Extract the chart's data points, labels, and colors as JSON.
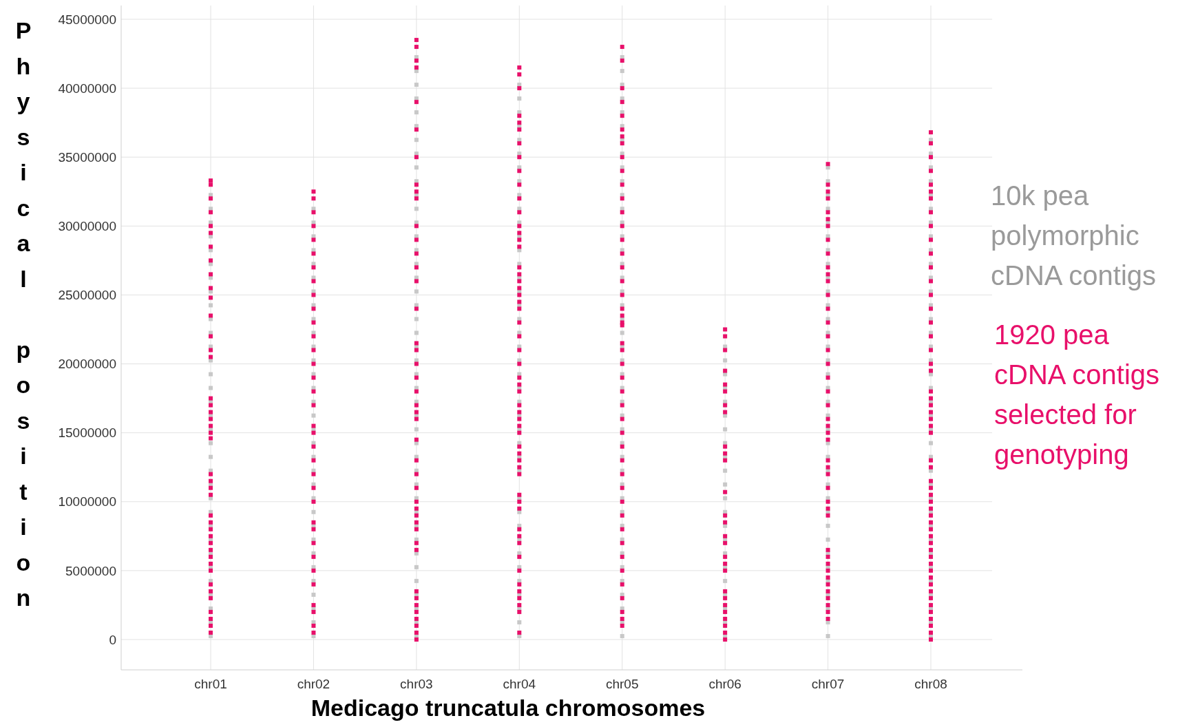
{
  "chart_data": {
    "type": "scatter",
    "xlabel": "Medicago truncatula chromosomes",
    "ylabel": "Physical position",
    "categories": [
      "chr01",
      "chr02",
      "chr03",
      "chr04",
      "chr05",
      "chr06",
      "chr07",
      "chr08"
    ],
    "ylim": [
      -2200000,
      46000000
    ],
    "yticks": [
      0,
      5000000,
      10000000,
      15000000,
      20000000,
      25000000,
      30000000,
      35000000,
      40000000,
      45000000
    ],
    "grid": true,
    "legend": "right",
    "marker": "square",
    "series": [
      {
        "name": "10k pea polymorphic cDNA contigs",
        "color": "#c8c8c8",
        "x": [
          "chr01",
          "chr01",
          "chr01",
          "chr01",
          "chr01",
          "chr01",
          "chr01",
          "chr01",
          "chr01",
          "chr01",
          "chr01",
          "chr01",
          "chr01",
          "chr01",
          "chr01",
          "chr01",
          "chr01",
          "chr01",
          "chr01",
          "chr01",
          "chr01",
          "chr01",
          "chr01",
          "chr01",
          "chr01",
          "chr01",
          "chr01",
          "chr01",
          "chr01",
          "chr01",
          "chr01",
          "chr01",
          "chr01",
          "chr02",
          "chr02",
          "chr02",
          "chr02",
          "chr02",
          "chr02",
          "chr02",
          "chr02",
          "chr02",
          "chr02",
          "chr02",
          "chr02",
          "chr02",
          "chr02",
          "chr02",
          "chr02",
          "chr02",
          "chr02",
          "chr02",
          "chr02",
          "chr02",
          "chr02",
          "chr02",
          "chr02",
          "chr02",
          "chr02",
          "chr02",
          "chr02",
          "chr02",
          "chr02",
          "chr02",
          "chr02",
          "chr03",
          "chr03",
          "chr03",
          "chr03",
          "chr03",
          "chr03",
          "chr03",
          "chr03",
          "chr03",
          "chr03",
          "chr03",
          "chr03",
          "chr03",
          "chr03",
          "chr03",
          "chr03",
          "chr03",
          "chr03",
          "chr03",
          "chr03",
          "chr03",
          "chr03",
          "chr03",
          "chr03",
          "chr03",
          "chr03",
          "chr03",
          "chr03",
          "chr03",
          "chr03",
          "chr03",
          "chr03",
          "chr03",
          "chr03",
          "chr03",
          "chr03",
          "chr03",
          "chr03",
          "chr03",
          "chr03",
          "chr03",
          "chr03",
          "chr03",
          "chr04",
          "chr04",
          "chr04",
          "chr04",
          "chr04",
          "chr04",
          "chr04",
          "chr04",
          "chr04",
          "chr04",
          "chr04",
          "chr04",
          "chr04",
          "chr04",
          "chr04",
          "chr04",
          "chr04",
          "chr04",
          "chr04",
          "chr04",
          "chr04",
          "chr04",
          "chr04",
          "chr04",
          "chr04",
          "chr04",
          "chr04",
          "chr04",
          "chr04",
          "chr04",
          "chr04",
          "chr04",
          "chr04",
          "chr04",
          "chr04",
          "chr04",
          "chr04",
          "chr04",
          "chr04",
          "chr04",
          "chr05",
          "chr05",
          "chr05",
          "chr05",
          "chr05",
          "chr05",
          "chr05",
          "chr05",
          "chr05",
          "chr05",
          "chr05",
          "chr05",
          "chr05",
          "chr05",
          "chr05",
          "chr05",
          "chr05",
          "chr05",
          "chr05",
          "chr05",
          "chr05",
          "chr05",
          "chr05",
          "chr05",
          "chr05",
          "chr05",
          "chr05",
          "chr05",
          "chr05",
          "chr05",
          "chr05",
          "chr05",
          "chr05",
          "chr05",
          "chr05",
          "chr05",
          "chr05",
          "chr05",
          "chr05",
          "chr05",
          "chr05",
          "chr05",
          "chr05",
          "chr06",
          "chr06",
          "chr06",
          "chr06",
          "chr06",
          "chr06",
          "chr06",
          "chr06",
          "chr06",
          "chr06",
          "chr06",
          "chr06",
          "chr06",
          "chr06",
          "chr06",
          "chr06",
          "chr06",
          "chr06",
          "chr06",
          "chr06",
          "chr06",
          "chr06",
          "chr07",
          "chr07",
          "chr07",
          "chr07",
          "chr07",
          "chr07",
          "chr07",
          "chr07",
          "chr07",
          "chr07",
          "chr07",
          "chr07",
          "chr07",
          "chr07",
          "chr07",
          "chr07",
          "chr07",
          "chr07",
          "chr07",
          "chr07",
          "chr07",
          "chr07",
          "chr07",
          "chr07",
          "chr07",
          "chr07",
          "chr07",
          "chr07",
          "chr07",
          "chr07",
          "chr07",
          "chr07",
          "chr07",
          "chr07",
          "chr07",
          "chr08",
          "chr08",
          "chr08",
          "chr08",
          "chr08",
          "chr08",
          "chr08",
          "chr08",
          "chr08",
          "chr08",
          "chr08",
          "chr08",
          "chr08",
          "chr08",
          "chr08",
          "chr08",
          "chr08",
          "chr08",
          "chr08",
          "chr08",
          "chr08",
          "chr08",
          "chr08",
          "chr08",
          "chr08",
          "chr08",
          "chr08",
          "chr08",
          "chr08",
          "chr08",
          "chr08",
          "chr08",
          "chr08",
          "chr08",
          "chr08",
          "chr08",
          "chr08"
        ],
        "values": [
          250000,
          1250000,
          2250000,
          3250000,
          4250000,
          5250000,
          6250000,
          7250000,
          8250000,
          9250000,
          10250000,
          11250000,
          12250000,
          13250000,
          14250000,
          15250000,
          16250000,
          17250000,
          18250000,
          19250000,
          20250000,
          21250000,
          22250000,
          23250000,
          24250000,
          25250000,
          26250000,
          27250000,
          28250000,
          29250000,
          30250000,
          31250000,
          32250000,
          250000,
          1250000,
          2250000,
          3250000,
          4250000,
          5250000,
          6250000,
          7250000,
          8250000,
          9250000,
          10250000,
          11250000,
          12250000,
          13250000,
          14250000,
          15250000,
          16250000,
          17250000,
          18250000,
          19250000,
          20250000,
          21250000,
          22250000,
          23250000,
          24250000,
          25250000,
          26250000,
          27250000,
          28250000,
          29250000,
          30250000,
          31250000,
          250000,
          1250000,
          2250000,
          3250000,
          4250000,
          5250000,
          6250000,
          7250000,
          8250000,
          9250000,
          10250000,
          11250000,
          12250000,
          13250000,
          14250000,
          15250000,
          16250000,
          17250000,
          18250000,
          19250000,
          20250000,
          21250000,
          22250000,
          23250000,
          24250000,
          25250000,
          26250000,
          27250000,
          28250000,
          29250000,
          30250000,
          31250000,
          32250000,
          33250000,
          34250000,
          35250000,
          36250000,
          37250000,
          38250000,
          39250000,
          40250000,
          41250000,
          42250000,
          250000,
          1250000,
          2250000,
          3250000,
          4250000,
          5250000,
          6250000,
          7250000,
          8250000,
          9250000,
          10250000,
          12250000,
          13250000,
          14250000,
          15250000,
          16250000,
          17250000,
          18250000,
          19250000,
          20250000,
          21250000,
          22250000,
          23250000,
          24250000,
          25250000,
          26250000,
          27250000,
          28250000,
          29250000,
          30250000,
          31250000,
          32250000,
          33250000,
          34250000,
          35250000,
          36250000,
          37250000,
          38250000,
          39250000,
          40250000,
          250000,
          1250000,
          2250000,
          3250000,
          4250000,
          5250000,
          6250000,
          7250000,
          8250000,
          9250000,
          10250000,
          11250000,
          12250000,
          13250000,
          14250000,
          15250000,
          16250000,
          17250000,
          18250000,
          19250000,
          20250000,
          21250000,
          22250000,
          23250000,
          24250000,
          25250000,
          26250000,
          27250000,
          28250000,
          29250000,
          30250000,
          31250000,
          32250000,
          33250000,
          34250000,
          35250000,
          36250000,
          37250000,
          38250000,
          39250000,
          40250000,
          41250000,
          42250000,
          250000,
          1250000,
          2250000,
          3250000,
          4250000,
          5250000,
          6250000,
          7250000,
          8250000,
          9250000,
          10250000,
          11250000,
          12250000,
          13250000,
          14250000,
          15250000,
          16250000,
          17250000,
          18250000,
          19250000,
          20250000,
          21250000,
          250000,
          1250000,
          2250000,
          3250000,
          4250000,
          5250000,
          6250000,
          7250000,
          8250000,
          9250000,
          10250000,
          11250000,
          12250000,
          13250000,
          14250000,
          15250000,
          16250000,
          17250000,
          18250000,
          19250000,
          20250000,
          21250000,
          22250000,
          23250000,
          24250000,
          25250000,
          26250000,
          27250000,
          28250000,
          29250000,
          30250000,
          31250000,
          32250000,
          33250000,
          34250000,
          250000,
          1250000,
          2250000,
          3250000,
          4250000,
          5250000,
          6250000,
          7250000,
          8250000,
          9250000,
          10250000,
          11250000,
          12250000,
          13250000,
          14250000,
          15250000,
          16250000,
          17250000,
          18250000,
          19250000,
          20250000,
          21250000,
          22250000,
          23250000,
          24250000,
          25250000,
          26250000,
          27250000,
          28250000,
          29250000,
          30250000,
          31250000,
          32250000,
          33250000,
          34250000,
          35250000,
          36250000
        ]
      },
      {
        "name": "1920 pea cDNA contigs selected for genotyping",
        "color": "#e8106a",
        "x": [
          "chr01",
          "chr01",
          "chr01",
          "chr01",
          "chr01",
          "chr01",
          "chr01",
          "chr01",
          "chr01",
          "chr01",
          "chr01",
          "chr01",
          "chr01",
          "chr01",
          "chr01",
          "chr01",
          "chr01",
          "chr01",
          "chr01",
          "chr01",
          "chr01",
          "chr01",
          "chr01",
          "chr01",
          "chr01",
          "chr01",
          "chr01",
          "chr01",
          "chr01",
          "chr01",
          "chr01",
          "chr01",
          "chr01",
          "chr01",
          "chr01",
          "chr01",
          "chr01",
          "chr01",
          "chr01",
          "chr01",
          "chr01",
          "chr01",
          "chr02",
          "chr02",
          "chr02",
          "chr02",
          "chr02",
          "chr02",
          "chr02",
          "chr02",
          "chr02",
          "chr02",
          "chr02",
          "chr02",
          "chr02",
          "chr02",
          "chr02",
          "chr02",
          "chr02",
          "chr02",
          "chr02",
          "chr02",
          "chr02",
          "chr02",
          "chr02",
          "chr02",
          "chr02",
          "chr02",
          "chr02",
          "chr02",
          "chr02",
          "chr02",
          "chr02",
          "chr02",
          "chr02",
          "chr02",
          "chr03",
          "chr03",
          "chr03",
          "chr03",
          "chr03",
          "chr03",
          "chr03",
          "chr03",
          "chr03",
          "chr03",
          "chr03",
          "chr03",
          "chr03",
          "chr03",
          "chr03",
          "chr03",
          "chr03",
          "chr03",
          "chr03",
          "chr03",
          "chr03",
          "chr03",
          "chr03",
          "chr03",
          "chr03",
          "chr03",
          "chr03",
          "chr03",
          "chr03",
          "chr03",
          "chr03",
          "chr03",
          "chr03",
          "chr03",
          "chr03",
          "chr03",
          "chr03",
          "chr03",
          "chr03",
          "chr03",
          "chr03",
          "chr03",
          "chr03",
          "chr04",
          "chr04",
          "chr04",
          "chr04",
          "chr04",
          "chr04",
          "chr04",
          "chr04",
          "chr04",
          "chr04",
          "chr04",
          "chr04",
          "chr04",
          "chr04",
          "chr04",
          "chr04",
          "chr04",
          "chr04",
          "chr04",
          "chr04",
          "chr04",
          "chr04",
          "chr04",
          "chr04",
          "chr04",
          "chr04",
          "chr04",
          "chr04",
          "chr04",
          "chr04",
          "chr04",
          "chr04",
          "chr04",
          "chr04",
          "chr04",
          "chr04",
          "chr04",
          "chr04",
          "chr04",
          "chr04",
          "chr04",
          "chr04",
          "chr04",
          "chr04",
          "chr04",
          "chr04",
          "chr04",
          "chr04",
          "chr04",
          "chr04",
          "chr04",
          "chr04",
          "chr04",
          "chr04",
          "chr05",
          "chr05",
          "chr05",
          "chr05",
          "chr05",
          "chr05",
          "chr05",
          "chr05",
          "chr05",
          "chr05",
          "chr05",
          "chr05",
          "chr05",
          "chr05",
          "chr05",
          "chr05",
          "chr05",
          "chr05",
          "chr05",
          "chr05",
          "chr05",
          "chr05",
          "chr05",
          "chr05",
          "chr05",
          "chr05",
          "chr05",
          "chr05",
          "chr05",
          "chr05",
          "chr05",
          "chr05",
          "chr05",
          "chr05",
          "chr05",
          "chr05",
          "chr05",
          "chr05",
          "chr05",
          "chr05",
          "chr05",
          "chr05",
          "chr05",
          "chr05",
          "chr05",
          "chr05",
          "chr06",
          "chr06",
          "chr06",
          "chr06",
          "chr06",
          "chr06",
          "chr06",
          "chr06",
          "chr06",
          "chr06",
          "chr06",
          "chr06",
          "chr06",
          "chr06",
          "chr06",
          "chr06",
          "chr06",
          "chr06",
          "chr06",
          "chr06",
          "chr06",
          "chr06",
          "chr06",
          "chr06",
          "chr06",
          "chr06",
          "chr06",
          "chr07",
          "chr07",
          "chr07",
          "chr07",
          "chr07",
          "chr07",
          "chr07",
          "chr07",
          "chr07",
          "chr07",
          "chr07",
          "chr07",
          "chr07",
          "chr07",
          "chr07",
          "chr07",
          "chr07",
          "chr07",
          "chr07",
          "chr07",
          "chr07",
          "chr07",
          "chr07",
          "chr07",
          "chr07",
          "chr07",
          "chr07",
          "chr07",
          "chr07",
          "chr07",
          "chr07",
          "chr07",
          "chr07",
          "chr07",
          "chr07",
          "chr07",
          "chr07",
          "chr07",
          "chr07",
          "chr07",
          "chr07",
          "chr07",
          "chr07",
          "chr08",
          "chr08",
          "chr08",
          "chr08",
          "chr08",
          "chr08",
          "chr08",
          "chr08",
          "chr08",
          "chr08",
          "chr08",
          "chr08",
          "chr08",
          "chr08",
          "chr08",
          "chr08",
          "chr08",
          "chr08",
          "chr08",
          "chr08",
          "chr08",
          "chr08",
          "chr08",
          "chr08",
          "chr08",
          "chr08",
          "chr08",
          "chr08",
          "chr08",
          "chr08",
          "chr08",
          "chr08",
          "chr08",
          "chr08",
          "chr08",
          "chr08",
          "chr08",
          "chr08",
          "chr08",
          "chr08",
          "chr08",
          "chr08",
          "chr08",
          "chr08",
          "chr08",
          "chr08",
          "chr08",
          "chr08",
          "chr08",
          "chr08",
          "chr08",
          "chr08",
          "chr08"
        ],
        "values": [
          33300000,
          33000000,
          32000000,
          31000000,
          30000000,
          29500000,
          28500000,
          27500000,
          26500000,
          25500000,
          24800000,
          23500000,
          22000000,
          21000000,
          20500000,
          17500000,
          17000000,
          16500000,
          16000000,
          15500000,
          15000000,
          14600000,
          12000000,
          11500000,
          11000000,
          10500000,
          9000000,
          8500000,
          8000000,
          7500000,
          7000000,
          6500000,
          6000000,
          5500000,
          5000000,
          4000000,
          3500000,
          3000000,
          2000000,
          1500000,
          1000000,
          500000,
          32500000,
          32000000,
          31000000,
          30000000,
          29000000,
          28000000,
          27000000,
          26000000,
          25000000,
          24000000,
          23000000,
          22000000,
          21000000,
          20000000,
          19000000,
          18000000,
          17000000,
          15500000,
          15000000,
          14000000,
          13000000,
          12000000,
          11000000,
          10000000,
          8500000,
          8000000,
          7000000,
          6000000,
          5000000,
          4000000,
          2500000,
          2000000,
          1000000,
          500000,
          43500000,
          43000000,
          42000000,
          41500000,
          39000000,
          37000000,
          35000000,
          33000000,
          32500000,
          32000000,
          30000000,
          29000000,
          28000000,
          27000000,
          26000000,
          24000000,
          21500000,
          21000000,
          20000000,
          19000000,
          18000000,
          17000000,
          16500000,
          16000000,
          14500000,
          13000000,
          12000000,
          11000000,
          10000000,
          9500000,
          9000000,
          8500000,
          8000000,
          7000000,
          6500000,
          3500000,
          3000000,
          2500000,
          2000000,
          1500000,
          1000000,
          500000,
          0,
          41500000,
          41000000,
          40000000,
          38000000,
          37500000,
          37000000,
          36000000,
          35000000,
          34000000,
          33000000,
          32000000,
          31000000,
          30000000,
          29500000,
          29000000,
          28500000,
          27000000,
          26500000,
          26000000,
          25500000,
          25000000,
          24500000,
          24000000,
          23000000,
          22000000,
          21000000,
          20000000,
          19000000,
          18500000,
          18000000,
          17000000,
          16500000,
          16000000,
          15500000,
          15000000,
          14000000,
          13500000,
          13000000,
          12500000,
          12000000,
          10500000,
          10000000,
          9500000,
          8000000,
          7500000,
          7000000,
          6000000,
          5000000,
          4000000,
          3500000,
          3000000,
          2500000,
          2000000,
          500000,
          43000000,
          42000000,
          40000000,
          39000000,
          38000000,
          37000000,
          36500000,
          36000000,
          35000000,
          34000000,
          33000000,
          32000000,
          31000000,
          30000000,
          29000000,
          28000000,
          27000000,
          26000000,
          25000000,
          24000000,
          23500000,
          23000000,
          22800000,
          21500000,
          21000000,
          20000000,
          19000000,
          18000000,
          17000000,
          16000000,
          15000000,
          14000000,
          13000000,
          12000000,
          11000000,
          10000000,
          9000000,
          8000000,
          7000000,
          6000000,
          5000000,
          4000000,
          3000000,
          2000000,
          1500000,
          1000000,
          22500000,
          22000000,
          21000000,
          19500000,
          18500000,
          18000000,
          17000000,
          16500000,
          14000000,
          13500000,
          13000000,
          10700000,
          9000000,
          8500000,
          7500000,
          7000000,
          6000000,
          5500000,
          5000000,
          3500000,
          3000000,
          2500000,
          2000000,
          1500000,
          1000000,
          500000,
          0,
          34500000,
          33000000,
          32500000,
          32000000,
          31000000,
          30500000,
          30000000,
          29000000,
          28000000,
          27000000,
          26500000,
          26000000,
          25000000,
          24000000,
          23000000,
          22000000,
          21000000,
          20000000,
          19000000,
          18000000,
          17000000,
          16000000,
          15500000,
          15000000,
          14500000,
          13000000,
          12500000,
          12000000,
          11000000,
          10000000,
          9500000,
          9000000,
          6500000,
          6000000,
          5500000,
          5000000,
          4500000,
          4000000,
          3500000,
          3000000,
          2500000,
          2000000,
          1500000,
          36800000,
          36000000,
          35000000,
          34000000,
          33000000,
          32500000,
          32000000,
          31000000,
          30000000,
          29000000,
          28000000,
          27000000,
          26000000,
          25000000,
          24000000,
          23000000,
          22000000,
          21000000,
          20000000,
          19500000,
          18000000,
          17500000,
          17000000,
          16500000,
          16000000,
          15500000,
          15000000,
          13000000,
          12500000,
          11500000,
          11000000,
          10500000,
          10000000,
          9500000,
          9000000,
          8500000,
          8000000,
          7500000,
          7000000,
          6500000,
          6000000,
          5500000,
          5000000,
          4500000,
          4000000,
          3500000,
          3000000,
          2500000,
          2000000,
          1500000,
          1000000,
          500000,
          0
        ]
      }
    ]
  }
}
